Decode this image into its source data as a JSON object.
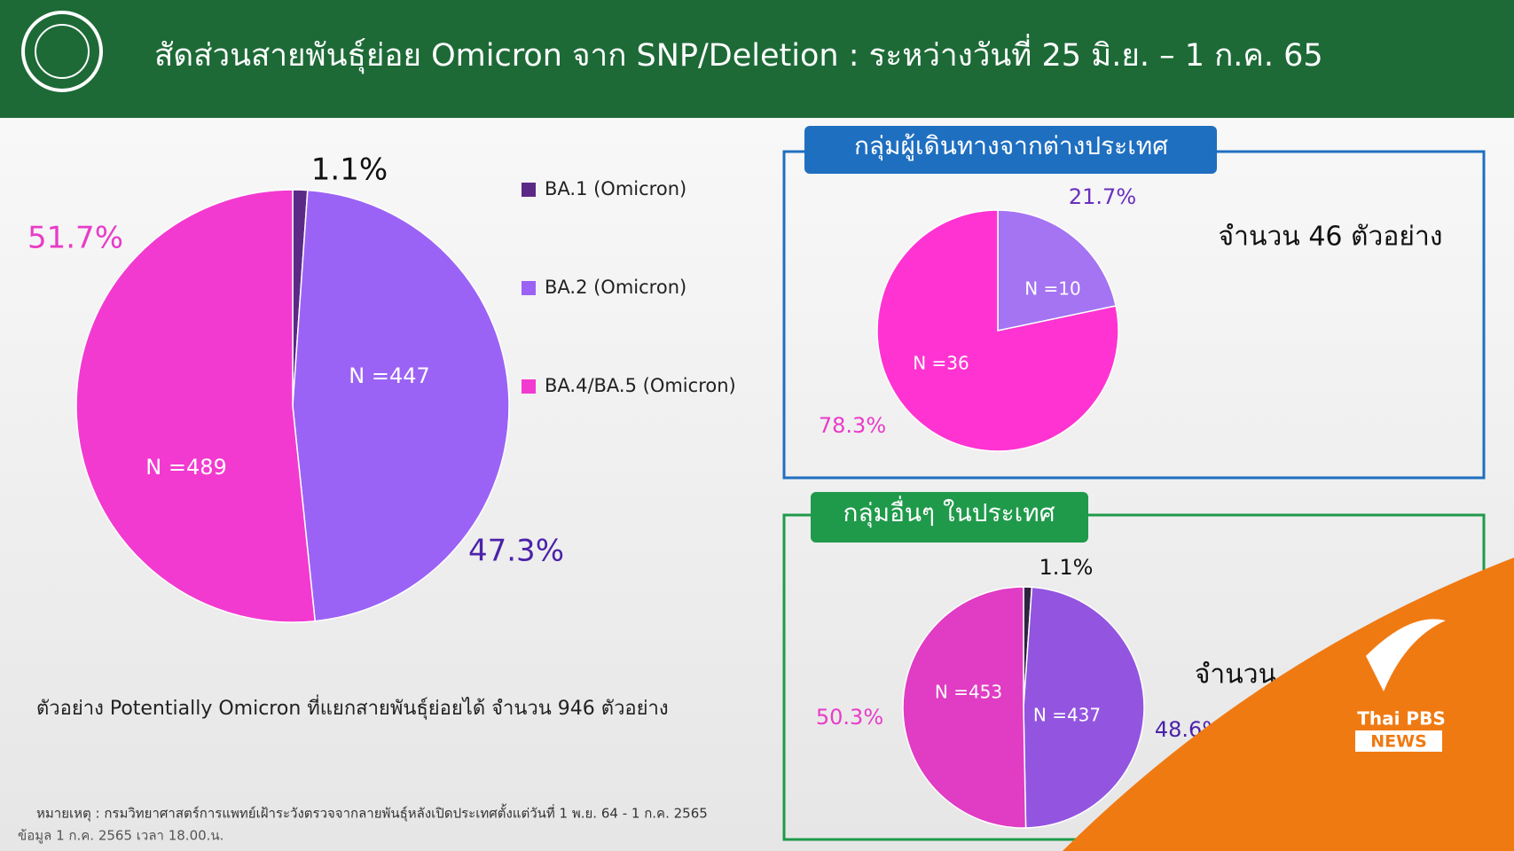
{
  "header": {
    "title": "สัดส่วนสายพันธุ์ย่อย Omicron จาก SNP/Deletion : ระหว่างวันที่ 25 มิ.ย. – 1 ก.ค. 65"
  },
  "chart_data": [
    {
      "type": "pie",
      "categories": [
        "BA.1 (Omicron)",
        "BA.2 (Omicron)",
        "BA.4/BA.5 (Omicron)"
      ],
      "values": [
        1.1,
        47.3,
        51.7
      ],
      "value_labels": [
        "1.1%",
        "47.3%",
        "51.7%"
      ],
      "n_labels": [
        null,
        "N =447",
        "N =489"
      ],
      "colors": [
        "#5b2a86",
        "#9b63f5",
        "#f23ad0"
      ],
      "legend": "right",
      "note": "ตัวอย่าง Potentially Omicron ที่แยกสายพันธุ์ย่อยได้ จำนวน 946 ตัวอย่าง"
    },
    {
      "type": "pie",
      "title": "กลุ่มผู้เดินทางจากต่างประเทศ",
      "values": [
        21.7,
        78.3
      ],
      "value_labels": [
        "21.7%",
        "78.3%"
      ],
      "n_labels": [
        "N =10",
        "N =36"
      ],
      "colors": [
        "#a474f2",
        "#ff33d2"
      ],
      "note": "จำนวน 46 ตัวอย่าง"
    },
    {
      "type": "pie",
      "title": "กลุ่มอื่นๆ ในประเทศ",
      "values": [
        1.1,
        48.6,
        50.3
      ],
      "value_labels": [
        "1.1%",
        "48.6%",
        "50.3%"
      ],
      "n_labels": [
        null,
        "N =437",
        "N =453"
      ],
      "colors": [
        "#2e2440",
        "#9355e0",
        "#e03cc4"
      ],
      "note": "จำนวน"
    }
  ],
  "footnotes": [
    "หมายเหตุ :  กรมวิทยาศาสตร์การแพทย์เฝ้าระวังตรวจจากลายพันธุ์หลังเปิดประเทศตั้งแต่วันที่ 1 พ.ย. 64 -  1 ก.ค. 2565",
    "ข้อมูล 1 ก.ค. 2565 เวลา 18.00.น."
  ],
  "watermark": {
    "brand": "Thai PBS",
    "sub": "NEWS"
  }
}
